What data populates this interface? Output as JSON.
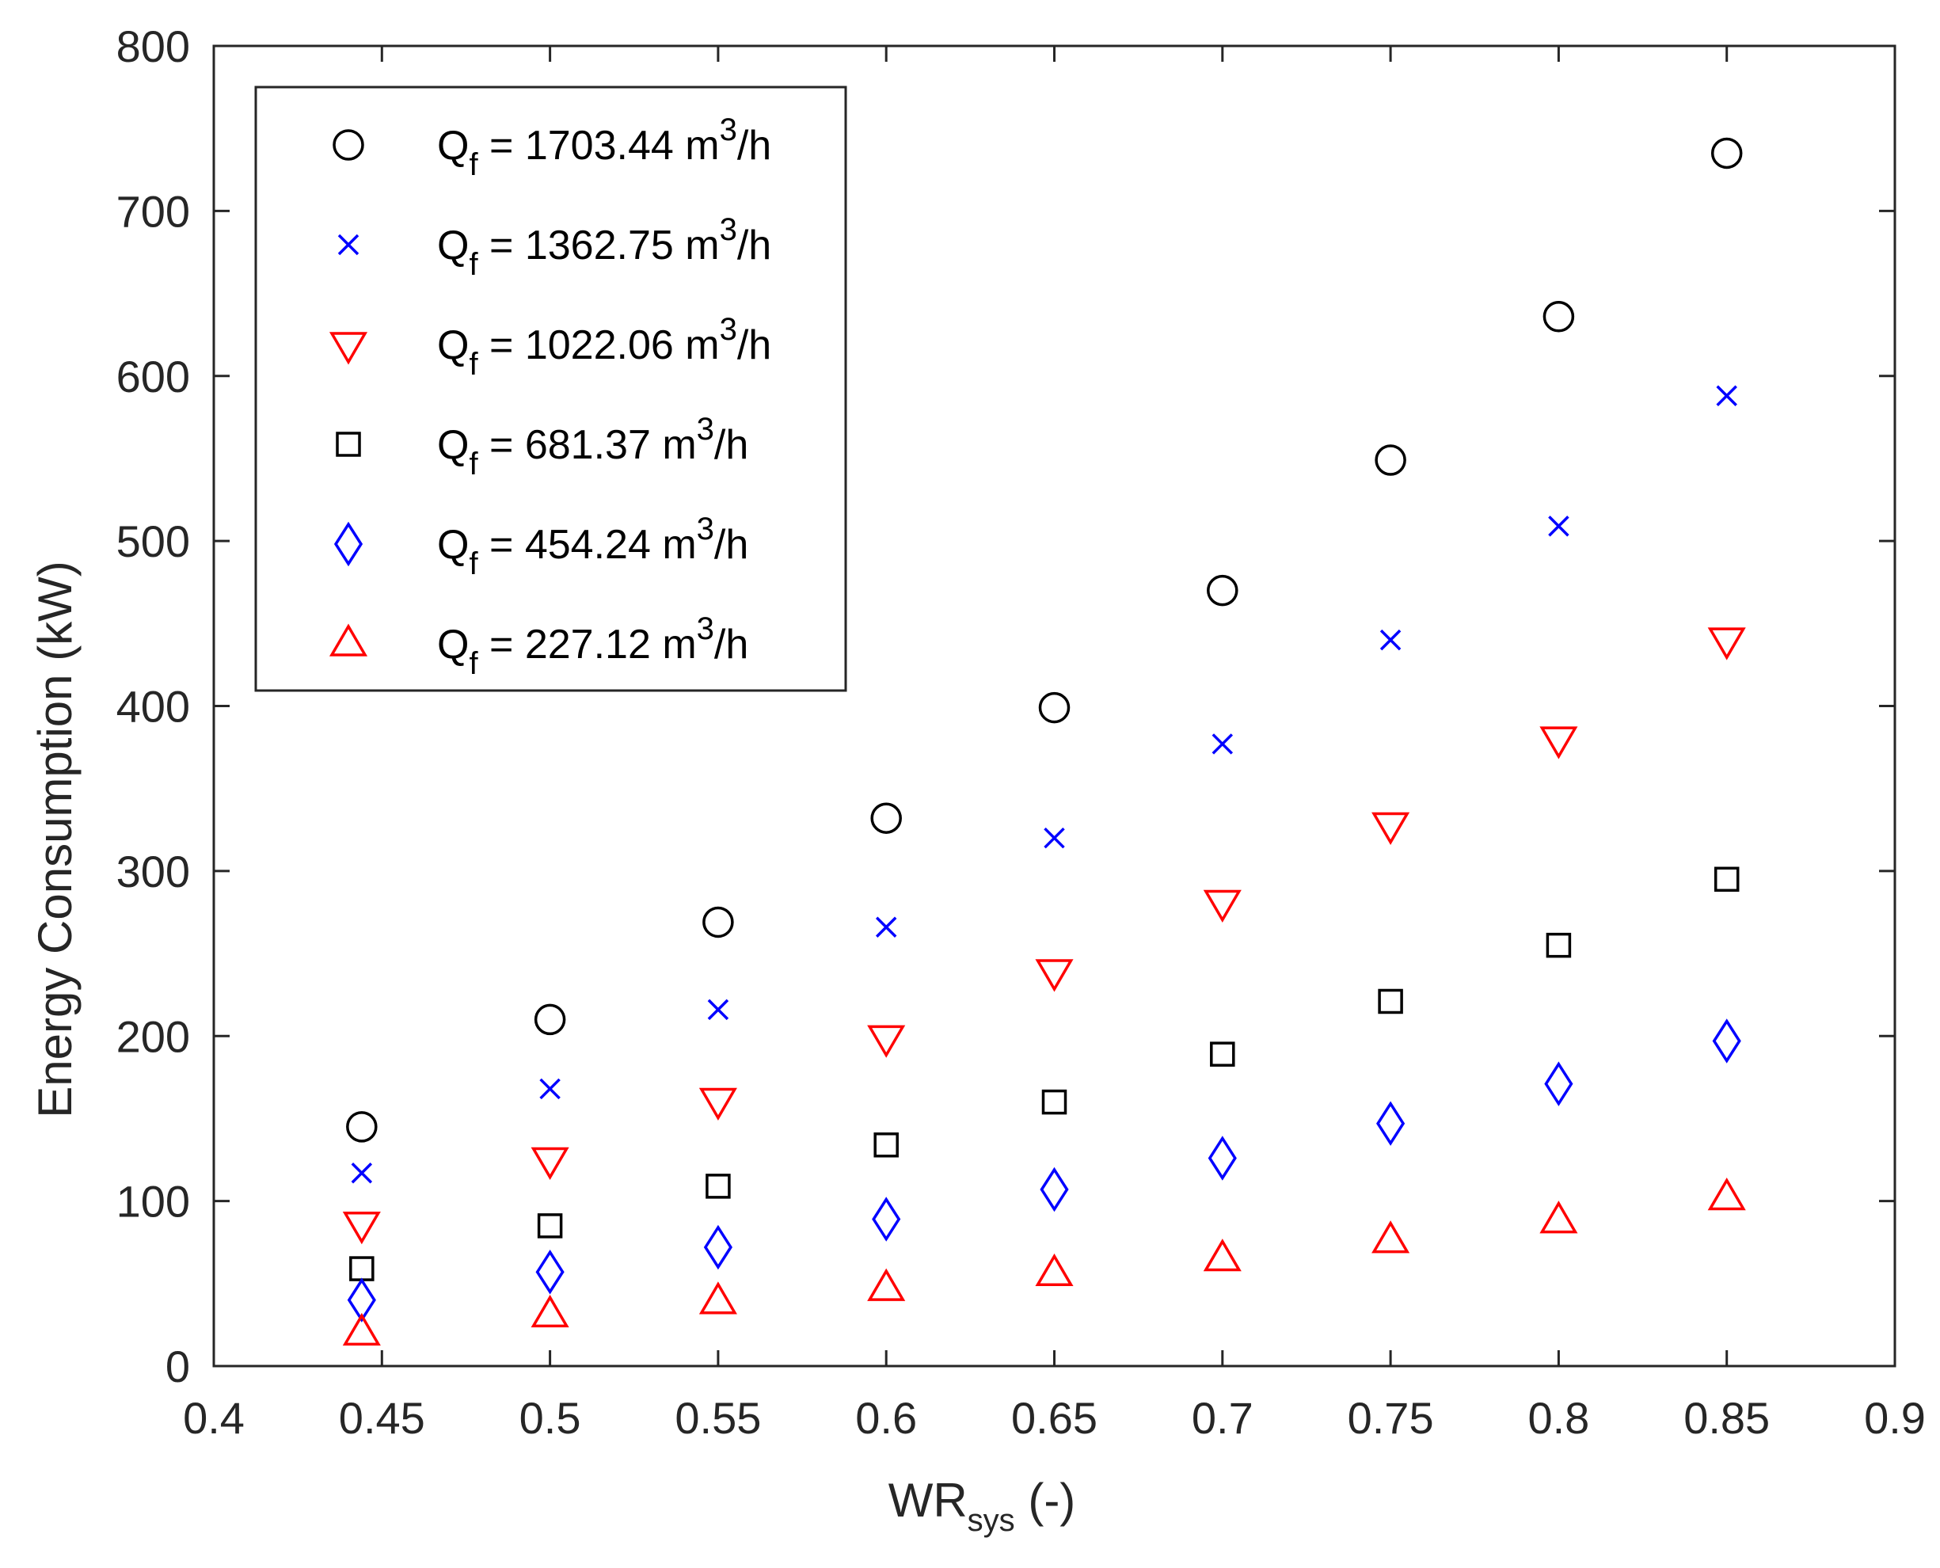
{
  "chart_data": {
    "type": "scatter",
    "title": "",
    "xlabel": {
      "main": "WR",
      "sub": "sys",
      "suffix": " (-)"
    },
    "ylabel": "Energy Consumption (kW)",
    "xlim": [
      0.4,
      0.9
    ],
    "ylim": [
      0,
      800
    ],
    "x_ticks": [
      0.4,
      0.45,
      0.5,
      0.55,
      0.6,
      0.65,
      0.7,
      0.75,
      0.8,
      0.85,
      0.9
    ],
    "x_tick_labels": [
      "0.4",
      "0.45",
      "0.5",
      "0.55",
      "0.6",
      "0.65",
      "0.7",
      "0.75",
      "0.8",
      "0.85",
      "0.9"
    ],
    "y_ticks": [
      0,
      100,
      200,
      300,
      400,
      500,
      600,
      700,
      800
    ],
    "y_tick_labels": [
      "0",
      "100",
      "200",
      "300",
      "400",
      "500",
      "600",
      "700",
      "800"
    ],
    "grid": false,
    "legend_position": "top-left",
    "x": [
      0.444,
      0.5,
      0.55,
      0.6,
      0.65,
      0.7,
      0.75,
      0.8,
      0.85
    ],
    "series": [
      {
        "name": "1703.44",
        "legend": {
          "prefix": "Q",
          "sub": "f",
          "value": " = 1703.44 m",
          "sup": "3",
          "unit": "/h"
        },
        "marker": "circle",
        "color": "#000000",
        "values": [
          145,
          210,
          269,
          332,
          399,
          470,
          549,
          636,
          735
        ]
      },
      {
        "name": "1362.75",
        "legend": {
          "prefix": "Q",
          "sub": "f",
          "value": " = 1362.75 m",
          "sup": "3",
          "unit": "/h"
        },
        "marker": "x",
        "color": "#0000ff",
        "values": [
          117,
          168,
          216,
          266,
          320,
          377,
          440,
          509,
          588
        ]
      },
      {
        "name": "1022.06",
        "legend": {
          "prefix": "Q",
          "sub": "f",
          "value": " = 1022.06 m",
          "sup": "3",
          "unit": "/h"
        },
        "marker": "triangle-down",
        "color": "#ff0000",
        "values": [
          86,
          125,
          161,
          199,
          239,
          281,
          328,
          380,
          440
        ]
      },
      {
        "name": "681.37",
        "legend": {
          "prefix": "Q",
          "sub": "f",
          "value": " = 681.37 m",
          "sup": "3",
          "unit": "/h"
        },
        "marker": "square",
        "color": "#000000",
        "values": [
          59,
          85,
          109,
          134,
          160,
          189,
          221,
          255,
          295
        ]
      },
      {
        "name": "454.24",
        "legend": {
          "prefix": "Q",
          "sub": "f",
          "value": " = 454.24 m",
          "sup": "3",
          "unit": "/h"
        },
        "marker": "diamond",
        "color": "#0000ff",
        "values": [
          40,
          57,
          72,
          89,
          107,
          126,
          147,
          171,
          197
        ]
      },
      {
        "name": "227.12",
        "legend": {
          "prefix": "Q",
          "sub": "f",
          "value": " = 227.12 m",
          "sup": "3",
          "unit": "/h"
        },
        "marker": "triangle-up",
        "color": "#ff0000",
        "values": [
          20,
          31,
          39,
          47,
          56,
          65,
          76,
          88,
          102
        ]
      }
    ]
  }
}
